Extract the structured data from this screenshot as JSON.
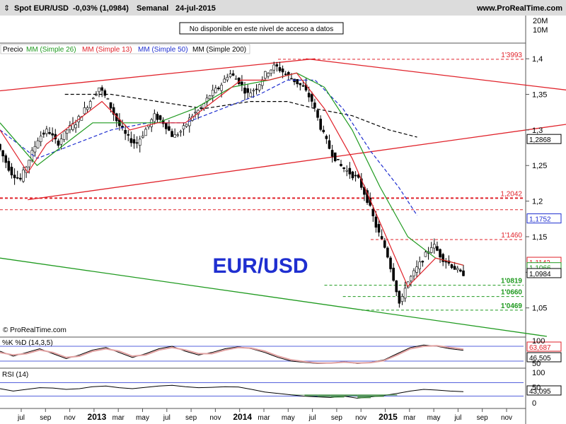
{
  "header": {
    "instrument": "Spot EUR/USD",
    "change": "-0,03% (1,0984)",
    "period": "Semanal",
    "date": "24-jul-2015",
    "site": "www.ProRealTime.com",
    "notice": "No disponible en este nivel de acceso a datos",
    "logo_text": "EUR/USD",
    "copyright": "© ProRealTime.com"
  },
  "legend": [
    {
      "label": "Precio",
      "color": "#000000"
    },
    {
      "label": "MM (Simple 26)",
      "color": "#1f9a1f"
    },
    {
      "label": "MM (Simple 13)",
      "color": "#e0222a"
    },
    {
      "label": "MM (Simple 50)",
      "color": "#1f2fd0"
    },
    {
      "label": "MM (Simple 200)",
      "color": "#000000"
    }
  ],
  "volume_axis": [
    "20M",
    "10M"
  ],
  "colors": {
    "candle_up": "#ffffff",
    "candle_down": "#000000",
    "sma13": "#e0222a",
    "sma26": "#1f9a1f",
    "sma50": "#1f2fd0",
    "sma200": "#000000",
    "resistance": "#e0222a",
    "support": "#1f9a1f",
    "stoch_k": "#000000",
    "stoch_d": "#e0a0a0",
    "rsi_fill": "#3a8a3a"
  },
  "chart_data": [
    {
      "type": "candlestick",
      "title": "Spot EUR/USD",
      "ylim": [
        1.01,
        1.42
      ],
      "y_ticks": [
        "1,4",
        "1,35",
        "1,3",
        "1,25",
        "1,2",
        "1,15",
        "1,1",
        "1,05"
      ],
      "x_ticks": [
        "jul",
        "sep",
        "nov",
        "2013",
        "mar",
        "may",
        "jul",
        "sep",
        "nov",
        "2014",
        "mar",
        "may",
        "jul",
        "sep",
        "nov",
        "2015",
        "mar",
        "may",
        "jul",
        "sep",
        "nov"
      ],
      "last_close": 1.0984,
      "price_points": [
        [
          0,
          1.28
        ],
        [
          3,
          1.24
        ],
        [
          5,
          1.23
        ],
        [
          7,
          1.26
        ],
        [
          9,
          1.29
        ],
        [
          11,
          1.3
        ],
        [
          13,
          1.28
        ],
        [
          15,
          1.3
        ],
        [
          17,
          1.31
        ],
        [
          19,
          1.33
        ],
        [
          21,
          1.35
        ],
        [
          22,
          1.36
        ],
        [
          24,
          1.34
        ],
        [
          26,
          1.31
        ],
        [
          28,
          1.29
        ],
        [
          30,
          1.28
        ],
        [
          32,
          1.3
        ],
        [
          34,
          1.32
        ],
        [
          36,
          1.31
        ],
        [
          38,
          1.29
        ],
        [
          40,
          1.3
        ],
        [
          42,
          1.32
        ],
        [
          44,
          1.33
        ],
        [
          46,
          1.35
        ],
        [
          48,
          1.36
        ],
        [
          50,
          1.38
        ],
        [
          52,
          1.37
        ],
        [
          54,
          1.35
        ],
        [
          56,
          1.36
        ],
        [
          58,
          1.38
        ],
        [
          60,
          1.39
        ],
        [
          62,
          1.38
        ],
        [
          64,
          1.37
        ],
        [
          66,
          1.36
        ],
        [
          68,
          1.34
        ],
        [
          70,
          1.3
        ],
        [
          72,
          1.27
        ],
        [
          74,
          1.25
        ],
        [
          76,
          1.24
        ],
        [
          78,
          1.23
        ],
        [
          80,
          1.2
        ],
        [
          82,
          1.16
        ],
        [
          84,
          1.13
        ],
        [
          86,
          1.08
        ],
        [
          87,
          1.05
        ],
        [
          88,
          1.08
        ],
        [
          90,
          1.1
        ],
        [
          92,
          1.12
        ],
        [
          94,
          1.14
        ],
        [
          96,
          1.12
        ],
        [
          98,
          1.11
        ],
        [
          100,
          1.0984
        ]
      ],
      "sma13": [
        [
          0,
          1.3
        ],
        [
          6,
          1.24
        ],
        [
          10,
          1.28
        ],
        [
          16,
          1.31
        ],
        [
          22,
          1.34
        ],
        [
          28,
          1.3
        ],
        [
          34,
          1.31
        ],
        [
          40,
          1.31
        ],
        [
          46,
          1.34
        ],
        [
          52,
          1.37
        ],
        [
          58,
          1.37
        ],
        [
          64,
          1.38
        ],
        [
          70,
          1.33
        ],
        [
          76,
          1.26
        ],
        [
          82,
          1.17
        ],
        [
          88,
          1.08
        ],
        [
          94,
          1.12
        ],
        [
          100,
          1.11
        ]
      ],
      "sma26": [
        [
          0,
          1.31
        ],
        [
          8,
          1.25
        ],
        [
          14,
          1.28
        ],
        [
          20,
          1.31
        ],
        [
          26,
          1.31
        ],
        [
          34,
          1.31
        ],
        [
          42,
          1.33
        ],
        [
          50,
          1.36
        ],
        [
          58,
          1.37
        ],
        [
          64,
          1.38
        ],
        [
          70,
          1.36
        ],
        [
          76,
          1.3
        ],
        [
          82,
          1.22
        ],
        [
          88,
          1.15
        ],
        [
          94,
          1.12
        ],
        [
          100,
          1.11
        ]
      ],
      "sma50": [
        [
          0,
          1.3
        ],
        [
          8,
          1.26
        ],
        [
          16,
          1.28
        ],
        [
          24,
          1.3
        ],
        [
          32,
          1.31
        ],
        [
          40,
          1.31
        ],
        [
          48,
          1.33
        ],
        [
          56,
          1.35
        ],
        [
          62,
          1.37
        ],
        [
          68,
          1.37
        ],
        [
          74,
          1.33
        ],
        [
          80,
          1.27
        ],
        [
          86,
          1.22
        ],
        [
          90,
          1.18
        ]
      ],
      "sma200": [
        [
          14,
          1.35
        ],
        [
          24,
          1.35
        ],
        [
          34,
          1.34
        ],
        [
          44,
          1.33
        ],
        [
          54,
          1.34
        ],
        [
          62,
          1.34
        ],
        [
          68,
          1.33
        ],
        [
          76,
          1.32
        ],
        [
          84,
          1.3
        ],
        [
          90,
          1.29
        ]
      ],
      "levels": [
        {
          "label": "1'3993",
          "value": 1.3993,
          "color": "#e0222a"
        },
        {
          "label": "1,2042",
          "value": 1.2042,
          "color": "#e0222a"
        },
        {
          "label": "1'1460",
          "value": 1.146,
          "color": "#e0222a"
        },
        {
          "label": "1'0819",
          "value": 1.0819,
          "color": "#1f9a1f"
        },
        {
          "label": "1'0660",
          "value": 1.066,
          "color": "#1f9a1f"
        },
        {
          "label": "1'0469",
          "value": 1.0469,
          "color": "#1f9a1f"
        }
      ],
      "price_flags": [
        {
          "label": "1,2868",
          "value": 1.2868,
          "color": "#000000"
        },
        {
          "label": "1,1752",
          "value": 1.1752,
          "color": "#1f2fd0"
        },
        {
          "label": "1,1142",
          "value": 1.1142,
          "color": "#e0222a"
        },
        {
          "label": "1,1066",
          "value": 1.1066,
          "color": "#1f9a1f"
        },
        {
          "label": "1,0984",
          "value": 1.0984,
          "color": "#000000"
        }
      ],
      "trend_lines": [
        {
          "from": [
            0,
            1.355
          ],
          "to": [
            68,
            1.4
          ],
          "color": "#e0222a"
        },
        {
          "from": [
            66,
            1.4
          ],
          "to": [
            130,
            1.35
          ],
          "color": "#e0222a"
        },
        {
          "from": [
            6,
            1.202
          ],
          "to": [
            130,
            1.315
          ],
          "color": "#e0222a"
        },
        {
          "from": [
            0,
            1.12
          ],
          "to": [
            118,
            1.01
          ],
          "color": "#1f9a1f"
        }
      ]
    },
    {
      "type": "line",
      "title": "%K %D (14,3,5)",
      "ylim": [
        0,
        100
      ],
      "series": [
        {
          "name": "%K",
          "values": [
            60,
            40,
            55,
            70,
            50,
            30,
            45,
            65,
            75,
            55,
            35,
            50,
            70,
            80,
            60,
            45,
            55,
            70,
            78,
            70,
            55,
            35,
            20,
            15,
            10,
            12,
            18,
            10,
            15,
            25,
            50,
            75,
            85,
            80,
            70,
            63.687
          ]
        },
        {
          "name": "%D",
          "values": [
            55,
            45,
            50,
            65,
            55,
            35,
            40,
            60,
            70,
            60,
            40,
            45,
            65,
            75,
            65,
            50,
            50,
            65,
            75,
            72,
            60,
            40,
            25,
            18,
            12,
            12,
            16,
            12,
            14,
            22,
            45,
            70,
            80,
            82,
            75,
            68
          ]
        }
      ],
      "flags": [
        "63,687",
        "46,505"
      ]
    },
    {
      "type": "line",
      "title": "RSI (14)",
      "ylim": [
        0,
        100
      ],
      "series": [
        {
          "name": "RSI (14)",
          "values": [
            52,
            45,
            50,
            55,
            54,
            50,
            52,
            58,
            60,
            55,
            52,
            56,
            60,
            62,
            58,
            55,
            56,
            58,
            57,
            50,
            42,
            38,
            34,
            30,
            28,
            26,
            30,
            24,
            28,
            32,
            38,
            45,
            50,
            48,
            45,
            43.095
          ]
        }
      ],
      "flags": [
        "43,095"
      ]
    }
  ]
}
